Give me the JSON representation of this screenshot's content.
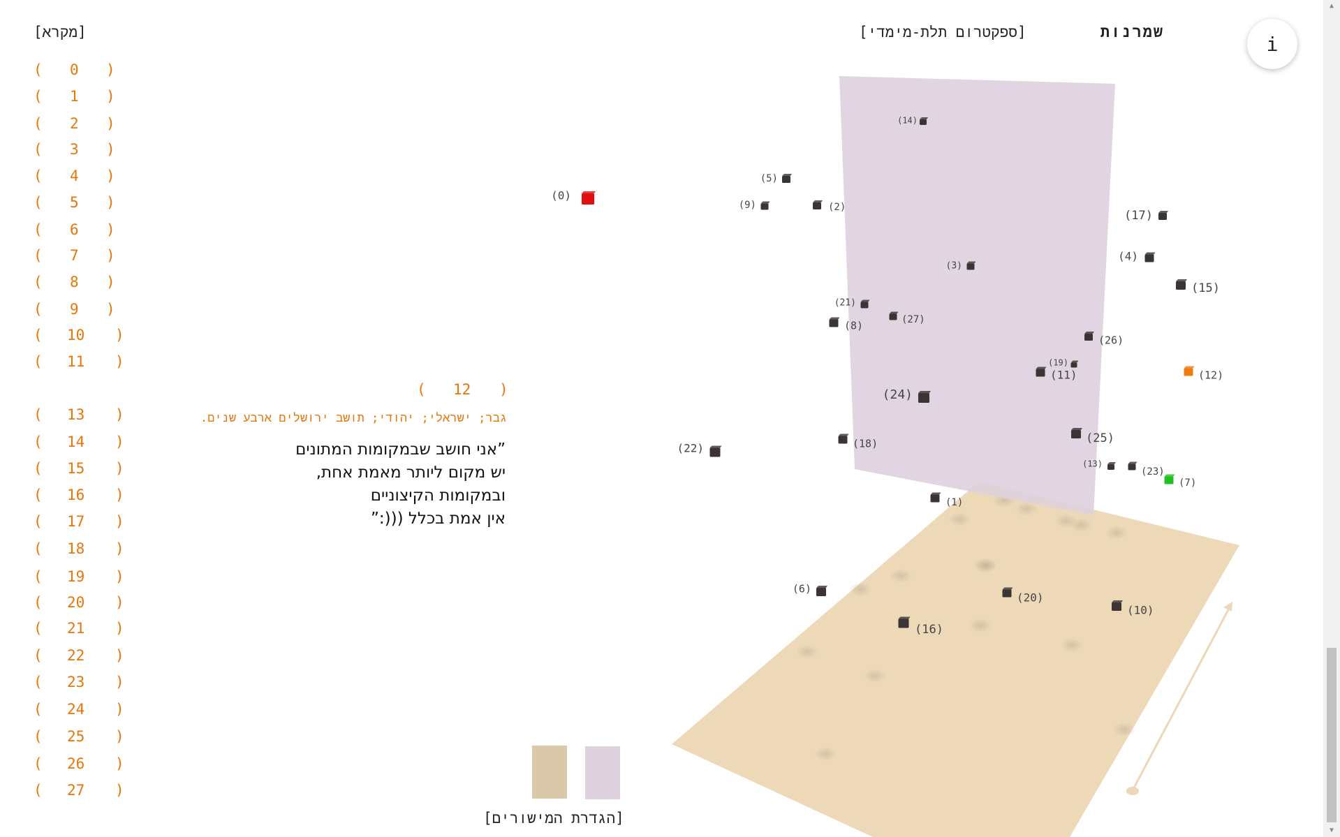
{
  "header": {
    "legend_label": "[מקרא]",
    "site_title": "שמרנות",
    "spectrum_label": "[ספקטרום תלת-מימדי]",
    "info_label": "i"
  },
  "list": {
    "open_bracket": "(",
    "close_bracket": ")",
    "items": [
      "0",
      "1",
      "2",
      "3",
      "4",
      "5",
      "6",
      "7",
      "8",
      "9",
      "10",
      "11",
      "12",
      "13",
      "14",
      "15",
      "16",
      "17",
      "18",
      "19",
      "20",
      "21",
      "22",
      "23",
      "24",
      "25",
      "26",
      "27"
    ],
    "expanded_index": 12
  },
  "expanded": {
    "number": "12",
    "profile": "גבר; ישראלי; יהודי; תושב ירושלים ארבע שנים.",
    "quote_lines": [
      "”אני חושב שבמקומות המתונים",
      "יש מקום ליותר מאמת אחת,",
      "ובמקומות הקיצוניים",
      "אין אמת בכלל (((:”"
    ]
  },
  "scene": {
    "colors": {
      "floor_plane": "#edd9b8",
      "wall_plane": "#ddd0dd",
      "point": "#3a3434",
      "highlight_red": "#e01010",
      "highlight_orange": "#f07a10",
      "highlight_green": "#20c020",
      "arrow": "#ecd8b8"
    },
    "points": [
      {
        "label": "(0)",
        "color": "red"
      },
      {
        "label": "(1)",
        "color": "dark"
      },
      {
        "label": "(2)",
        "color": "dark"
      },
      {
        "label": "(3)",
        "color": "dark"
      },
      {
        "label": "(4)",
        "color": "dark"
      },
      {
        "label": "(5)",
        "color": "dark"
      },
      {
        "label": "(6)",
        "color": "dark"
      },
      {
        "label": "(7)",
        "color": "green"
      },
      {
        "label": "(8)",
        "color": "dark"
      },
      {
        "label": "(9)",
        "color": "dark"
      },
      {
        "label": "(10)",
        "color": "dark"
      },
      {
        "label": "(11)",
        "color": "dark"
      },
      {
        "label": "(12)",
        "color": "orange"
      },
      {
        "label": "(13)",
        "color": "dark"
      },
      {
        "label": "(14)",
        "color": "dark"
      },
      {
        "label": "(15)",
        "color": "dark"
      },
      {
        "label": "(16)",
        "color": "dark"
      },
      {
        "label": "(17)",
        "color": "dark"
      },
      {
        "label": "(18)",
        "color": "dark"
      },
      {
        "label": "(19)",
        "color": "dark"
      },
      {
        "label": "(20)",
        "color": "dark"
      },
      {
        "label": "(21)",
        "color": "dark"
      },
      {
        "label": "(22)",
        "color": "dark"
      },
      {
        "label": "(23)",
        "color": "dark"
      },
      {
        "label": "(24)",
        "color": "dark"
      },
      {
        "label": "(25)",
        "color": "dark"
      },
      {
        "label": "(26)",
        "color": "dark"
      },
      {
        "label": "(27)",
        "color": "dark"
      }
    ]
  },
  "footer": {
    "planes_label": "[הגדרת המישורים]",
    "swatch_floor_color": "#d9c9aa",
    "swatch_wall_color": "#ddd2de"
  }
}
